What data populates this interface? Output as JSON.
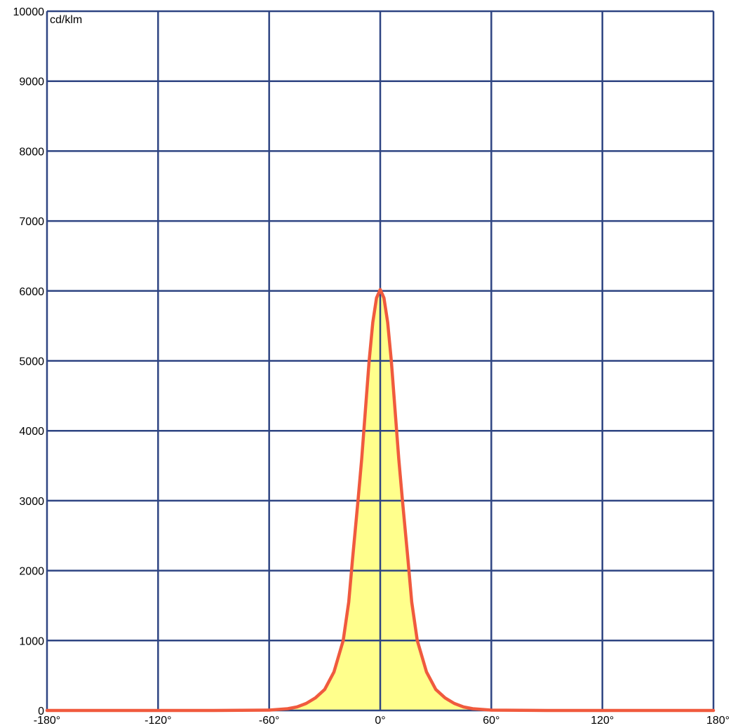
{
  "chart_data": {
    "type": "area",
    "unit_label": "cd/klm",
    "xlim": [
      -180,
      180
    ],
    "ylim": [
      0,
      10000
    ],
    "x_ticks": [
      -180,
      -120,
      -60,
      0,
      60,
      120,
      180
    ],
    "x_tick_labels": [
      "-180°",
      "-120°",
      "-60°",
      "0°",
      "60°",
      "120°",
      "180°"
    ],
    "y_ticks": [
      0,
      1000,
      2000,
      3000,
      4000,
      5000,
      6000,
      7000,
      8000,
      9000,
      10000
    ],
    "y_tick_labels": [
      "0",
      "1000",
      "2000",
      "3000",
      "4000",
      "5000",
      "6000",
      "7000",
      "8000",
      "9000",
      "10000"
    ],
    "grid": true,
    "series": [
      {
        "x": [
          -180,
          -90,
          -60,
          -50,
          -45,
          -40,
          -35,
          -30,
          -25,
          -20,
          -17,
          -15,
          -12,
          -10,
          -8,
          -6,
          -4,
          -2,
          0,
          2,
          4,
          6,
          8,
          10,
          12,
          15,
          17,
          20,
          25,
          30,
          35,
          40,
          45,
          50,
          60,
          90,
          180
        ],
        "y": [
          0,
          0,
          5,
          25,
          50,
          100,
          180,
          300,
          550,
          1000,
          1550,
          2150,
          3000,
          3600,
          4300,
          5000,
          5550,
          5900,
          6020,
          5900,
          5550,
          5000,
          4300,
          3600,
          3000,
          2150,
          1550,
          1000,
          550,
          300,
          180,
          100,
          50,
          25,
          5,
          0,
          0
        ]
      }
    ],
    "colors": {
      "grid": "#2e4482",
      "line": "#f05a3e",
      "fill": "#ffff8c"
    }
  }
}
